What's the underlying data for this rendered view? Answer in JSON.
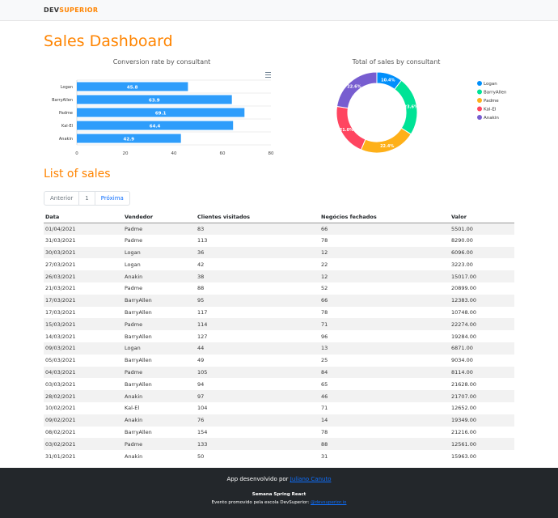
{
  "nav": {
    "logo_dev": "DEV",
    "logo_superior": "SUPERIOR"
  },
  "page_title": "Sales Dashboard",
  "chart_data": [
    {
      "type": "bar",
      "orientation": "horizontal",
      "title": "Conversion rate by consultant",
      "categories": [
        "Logan",
        "BarryAllen",
        "Padme",
        "Kal-El",
        "Anakin"
      ],
      "values": [
        45.8,
        63.9,
        69.1,
        64.4,
        42.9
      ],
      "xlim": [
        0,
        80
      ],
      "xticks": [
        "0",
        "20",
        "40",
        "60",
        "80"
      ],
      "color": "#2e9dfb",
      "grid": true,
      "menu_icon": "hamburger-menu-icon"
    },
    {
      "type": "pie",
      "variant": "donut",
      "title": "Total of sales by consultant",
      "labels": [
        "Logan",
        "BarryAllen",
        "Padme",
        "Kal-El",
        "Anakin"
      ],
      "values": [
        10.4,
        23.6,
        22.4,
        21.0,
        22.6
      ],
      "value_labels": [
        "10.4%",
        "23.6%",
        "22.4%",
        "21.0%",
        "22.6%"
      ],
      "colors": [
        "#008ffb",
        "#00e396",
        "#feb019",
        "#ff4560",
        "#775dd0"
      ],
      "legend": "right"
    }
  ],
  "list_title": "List of sales",
  "pagination": {
    "prev": "Anterior",
    "page": "1",
    "next": "Próxima"
  },
  "table": {
    "headers": [
      "Data",
      "Vendedor",
      "Clientes visitados",
      "Negócios fechados",
      "Valor"
    ],
    "rows": [
      [
        "01/04/2021",
        "Padme",
        "83",
        "66",
        "5501.00"
      ],
      [
        "31/03/2021",
        "Padme",
        "113",
        "78",
        "8290.00"
      ],
      [
        "30/03/2021",
        "Logan",
        "36",
        "12",
        "6096.00"
      ],
      [
        "27/03/2021",
        "Logan",
        "42",
        "22",
        "3223.00"
      ],
      [
        "26/03/2021",
        "Anakin",
        "38",
        "12",
        "15017.00"
      ],
      [
        "21/03/2021",
        "Padme",
        "88",
        "52",
        "20899.00"
      ],
      [
        "17/03/2021",
        "BarryAllen",
        "95",
        "66",
        "12383.00"
      ],
      [
        "17/03/2021",
        "BarryAllen",
        "117",
        "78",
        "10748.00"
      ],
      [
        "15/03/2021",
        "Padme",
        "114",
        "71",
        "22274.00"
      ],
      [
        "14/03/2021",
        "BarryAllen",
        "127",
        "96",
        "19284.00"
      ],
      [
        "09/03/2021",
        "Logan",
        "44",
        "13",
        "6871.00"
      ],
      [
        "05/03/2021",
        "BarryAllen",
        "49",
        "25",
        "9034.00"
      ],
      [
        "04/03/2021",
        "Padme",
        "105",
        "84",
        "8114.00"
      ],
      [
        "03/03/2021",
        "BarryAllen",
        "94",
        "65",
        "21628.00"
      ],
      [
        "28/02/2021",
        "Anakin",
        "97",
        "46",
        "21707.00"
      ],
      [
        "10/02/2021",
        "Kal-El",
        "104",
        "71",
        "12652.00"
      ],
      [
        "09/02/2021",
        "Anakin",
        "76",
        "14",
        "19349.00"
      ],
      [
        "08/02/2021",
        "BarryAllen",
        "154",
        "78",
        "21216.00"
      ],
      [
        "03/02/2021",
        "Padme",
        "133",
        "88",
        "12561.00"
      ],
      [
        "31/01/2021",
        "Anakin",
        "50",
        "31",
        "15963.00"
      ]
    ]
  },
  "footer": {
    "dev_text": "App desenvolvido por ",
    "dev_link": "Juliano Canuto",
    "event": "Semana Spring React",
    "promo_text": "Evento promovido pela escola DevSuperior: ",
    "promo_link": "@devsuperior.io"
  }
}
